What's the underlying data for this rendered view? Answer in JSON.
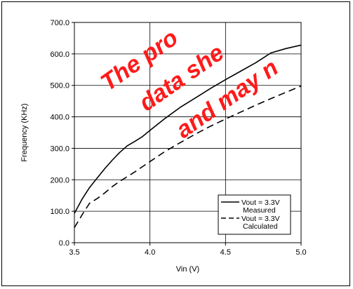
{
  "chart_data": {
    "type": "line",
    "xlabel": "Vin (V)",
    "ylabel": "Frequency (KHz)",
    "xlim": [
      3.5,
      5.0
    ],
    "ylim": [
      0.0,
      700.0
    ],
    "x_ticks": [
      "3.5",
      "4.0",
      "4.5",
      "5.0"
    ],
    "y_ticks": [
      "0.0",
      "100.0",
      "200.0",
      "300.0",
      "400.0",
      "500.0",
      "600.0",
      "700.0"
    ],
    "grid": "vertical lines at x ticks, horizontal lines at y ticks",
    "legend_position": "bottom-right",
    "series": [
      {
        "name": "Vout = 3.3V Measured",
        "style": "solid",
        "x": [
          3.5,
          3.55,
          3.6,
          3.65,
          3.7,
          3.75,
          3.8,
          3.85,
          3.9,
          3.95,
          4.0,
          4.1,
          4.2,
          4.3,
          4.4,
          4.5,
          4.6,
          4.7,
          4.8,
          4.9,
          5.0
        ],
        "y": [
          93,
          138,
          175,
          205,
          235,
          262,
          287,
          308,
          322,
          337,
          357,
          395,
          430,
          460,
          490,
          518,
          545,
          572,
          603,
          617,
          628
        ]
      },
      {
        "name": "Vout = 3.3V Calculated",
        "style": "dashed",
        "x": [
          3.5,
          3.55,
          3.6,
          3.65,
          3.7,
          3.75,
          3.8,
          3.85,
          3.9,
          4.0,
          4.1,
          4.2,
          4.3,
          4.4,
          4.5,
          4.6,
          4.7,
          4.8,
          4.9,
          5.0
        ],
        "y": [
          48,
          88,
          125,
          140,
          158,
          178,
          195,
          210,
          225,
          258,
          290,
          318,
          345,
          370,
          393,
          415,
          437,
          458,
          478,
          498
        ]
      }
    ],
    "legend": [
      {
        "line1": "Vout = 3.3V",
        "line2": "Measured",
        "style": "solid"
      },
      {
        "line1": "Vout = 3.3V",
        "line2": "Calculated",
        "style": "dashed"
      }
    ]
  },
  "watermark": {
    "lines": [
      "The pro",
      "data she",
      "and may n"
    ],
    "color": "#ff1a1a"
  }
}
